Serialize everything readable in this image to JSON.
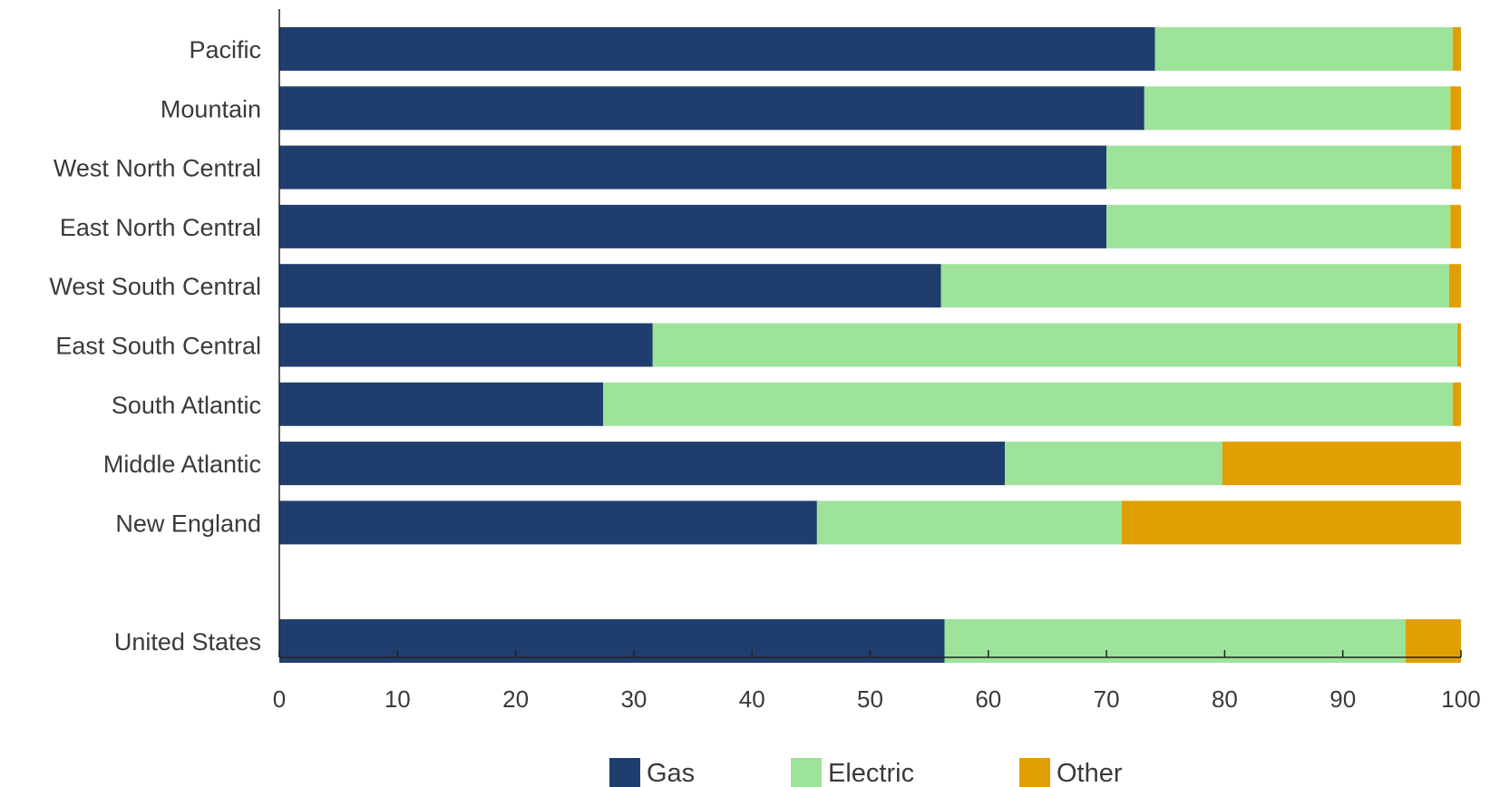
{
  "chart_data": {
    "type": "bar",
    "orientation": "horizontal",
    "stacked": true,
    "title": "",
    "xlabel": "",
    "ylabel": "",
    "xlim": [
      0,
      100
    ],
    "x_ticks": [
      0,
      10,
      20,
      30,
      40,
      50,
      60,
      70,
      80,
      90,
      100
    ],
    "grid": false,
    "legend_position": "bottom",
    "categories": [
      "Pacific",
      "Mountain",
      "West North Central",
      "East North Central",
      "West South Central",
      "East South Central",
      "South Atlantic",
      "Middle Atlantic",
      "New England",
      "",
      "United States"
    ],
    "series": [
      {
        "name": "Gas",
        "color": "#1f3e6e",
        "values": [
          74.1,
          73.2,
          70.0,
          70.0,
          56.0,
          31.6,
          27.4,
          61.4,
          45.5,
          null,
          56.3
        ]
      },
      {
        "name": "Electric",
        "color": "#9ee39a",
        "values": [
          25.2,
          25.9,
          29.2,
          29.1,
          43.0,
          68.1,
          71.9,
          18.4,
          25.8,
          null,
          39.0
        ]
      },
      {
        "name": "Other",
        "color": "#e09f00",
        "values": [
          0.7,
          0.9,
          0.8,
          0.9,
          1.0,
          0.3,
          0.7,
          20.2,
          28.7,
          null,
          4.7
        ]
      }
    ]
  }
}
